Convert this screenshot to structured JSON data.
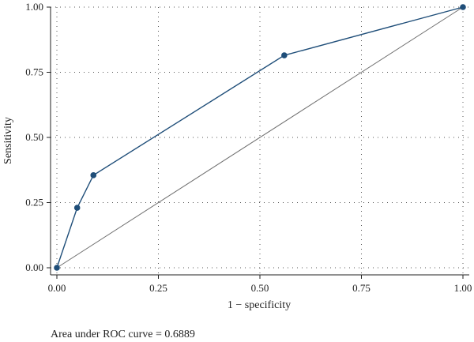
{
  "chart_data": {
    "type": "line",
    "title": "",
    "xlabel": "1 − specificity",
    "ylabel": "Sensitivity",
    "xlim": [
      0,
      1
    ],
    "ylim": [
      0,
      1
    ],
    "x_ticks": [
      0,
      0.25,
      0.5,
      0.75,
      1
    ],
    "y_ticks": [
      0,
      0.25,
      0.5,
      0.75,
      1
    ],
    "x_tick_labels": [
      "0.00",
      "0.25",
      "0.50",
      "0.75",
      "1.00"
    ],
    "y_tick_labels": [
      "0.00",
      "0.25",
      "0.50",
      "0.75",
      "1.00"
    ],
    "grid": true,
    "series": [
      {
        "x": [
          0,
          0.05,
          0.09,
          0.56,
          1.0
        ],
        "y": [
          0,
          0.23,
          0.355,
          0.815,
          1.0
        ],
        "color": "#1f4e79",
        "marker": "circle"
      },
      {
        "x": [
          0,
          1
        ],
        "y": [
          0,
          1
        ],
        "color": "#6e6e6e",
        "marker": "none"
      }
    ],
    "annotations": [
      "Area under ROC curve = 0.6889"
    ]
  }
}
